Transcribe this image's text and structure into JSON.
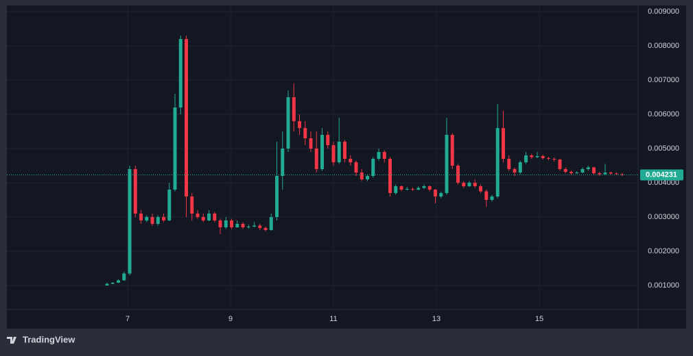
{
  "chart_data": {
    "type": "candlestick",
    "watermark": "TradingView",
    "up_color": "#22ab94",
    "down_color": "#f23645",
    "grid": true,
    "xlim": [
      4.653,
      16.92
    ],
    "xticks": [
      7,
      9,
      11,
      13,
      15
    ],
    "ylim": [
      0.0003,
      0.00914
    ],
    "yticks": [
      {
        "value": 0.001,
        "label": "0.001000"
      },
      {
        "value": 0.002,
        "label": "0.002000"
      },
      {
        "value": 0.003,
        "label": "0.003000"
      },
      {
        "value": 0.004,
        "label": "0.004000"
      },
      {
        "value": 0.005,
        "label": "0.005000"
      },
      {
        "value": 0.006,
        "label": "0.006000"
      },
      {
        "value": 0.007,
        "label": "0.007000"
      },
      {
        "value": 0.008,
        "label": "0.008000"
      },
      {
        "value": 0.009,
        "label": "0.009000"
      }
    ],
    "last_price": {
      "value": 0.004231,
      "label": "0.004231"
    },
    "x": [
      6.6,
      6.71,
      6.82,
      6.93,
      7.04,
      7.15,
      7.26,
      7.37,
      7.48,
      7.59,
      7.7,
      7.81,
      7.92,
      8.03,
      8.14,
      8.25,
      8.36,
      8.47,
      8.58,
      8.69,
      8.8,
      8.91,
      9.02,
      9.13,
      9.24,
      9.35,
      9.46,
      9.57,
      9.68,
      9.79,
      9.9,
      10.01,
      10.12,
      10.23,
      10.34,
      10.45,
      10.56,
      10.67,
      10.78,
      10.89,
      11.0,
      11.11,
      11.22,
      11.33,
      11.44,
      11.55,
      11.66,
      11.77,
      11.88,
      11.99,
      12.1,
      12.21,
      12.32,
      12.43,
      12.54,
      12.65,
      12.76,
      12.87,
      12.98,
      13.09,
      13.2,
      13.31,
      13.42,
      13.53,
      13.64,
      13.75,
      13.86,
      13.97,
      14.08,
      14.19,
      14.3,
      14.41,
      14.52,
      14.63,
      14.74,
      14.85,
      14.96,
      15.07,
      15.18,
      15.29,
      15.4,
      15.51,
      15.62,
      15.73,
      15.84,
      15.95,
      16.06,
      16.17,
      16.28,
      16.39,
      16.5,
      16.61
    ],
    "open": [
      0.001,
      0.00105,
      0.00108,
      0.00115,
      0.00135,
      0.0044,
      0.0031,
      0.0029,
      0.003,
      0.0028,
      0.003,
      0.0029,
      0.0038,
      0.0062,
      0.0082,
      0.0036,
      0.0031,
      0.003,
      0.0029,
      0.0031,
      0.0029,
      0.0027,
      0.0029,
      0.0027,
      0.0028,
      0.0027,
      0.00272,
      0.00275,
      0.00268,
      0.00262,
      0.003,
      0.0042,
      0.005,
      0.0065,
      0.0058,
      0.0056,
      0.0053,
      0.005,
      0.0044,
      0.0054,
      0.0051,
      0.0046,
      0.0052,
      0.0047,
      0.0046,
      0.0043,
      0.0041,
      0.0042,
      0.0047,
      0.0049,
      0.0047,
      0.0037,
      0.0039,
      0.0038,
      0.00382,
      0.0038,
      0.00385,
      0.0039,
      0.0038,
      0.0036,
      0.0037,
      0.0054,
      0.0045,
      0.004,
      0.0039,
      0.004,
      0.0039,
      0.00375,
      0.0035,
      0.0036,
      0.0056,
      0.0047,
      0.0044,
      0.0043,
      0.0046,
      0.0048,
      0.00475,
      0.00478,
      0.00472,
      0.0047,
      0.00468,
      0.0044,
      0.00432,
      0.00428,
      0.0043,
      0.0044,
      0.00445,
      0.00428,
      0.00425,
      0.0043,
      0.00427,
      0.00425
    ],
    "high": [
      0.00108,
      0.0011,
      0.00118,
      0.0014,
      0.0045,
      0.0045,
      0.0032,
      0.00305,
      0.0031,
      0.00305,
      0.0031,
      0.004,
      0.0066,
      0.0083,
      0.0083,
      0.0037,
      0.0032,
      0.0031,
      0.0032,
      0.00315,
      0.00295,
      0.003,
      0.00295,
      0.0029,
      0.00285,
      0.00278,
      0.00285,
      0.0028,
      0.00272,
      0.0031,
      0.0052,
      0.0055,
      0.0067,
      0.0069,
      0.006,
      0.0058,
      0.0055,
      0.0055,
      0.0056,
      0.0055,
      0.0052,
      0.0059,
      0.00525,
      0.0048,
      0.00465,
      0.0044,
      0.00425,
      0.00475,
      0.005,
      0.00495,
      0.00475,
      0.00395,
      0.00392,
      0.00388,
      0.00386,
      0.0039,
      0.00395,
      0.00392,
      0.00382,
      0.00375,
      0.0059,
      0.00545,
      0.00455,
      0.00405,
      0.00405,
      0.0041,
      0.00395,
      0.0038,
      0.00365,
      0.0063,
      0.0061,
      0.0048,
      0.00445,
      0.00465,
      0.0049,
      0.00485,
      0.0049,
      0.00482,
      0.00476,
      0.00474,
      0.0047,
      0.00445,
      0.00436,
      0.00434,
      0.00445,
      0.0045,
      0.00447,
      0.00432,
      0.00455,
      0.00433,
      0.0043,
      0.00428
    ],
    "low": [
      0.001,
      0.00104,
      0.00107,
      0.00114,
      0.0013,
      0.003,
      0.0028,
      0.00285,
      0.00275,
      0.00275,
      0.00285,
      0.00288,
      0.00375,
      0.006,
      0.003,
      0.0029,
      0.00295,
      0.00285,
      0.00288,
      0.00285,
      0.0025,
      0.00265,
      0.00265,
      0.00268,
      0.00265,
      0.00266,
      0.0027,
      0.00262,
      0.00258,
      0.0026,
      0.0029,
      0.0038,
      0.0049,
      0.0055,
      0.0054,
      0.0051,
      0.0049,
      0.0043,
      0.00435,
      0.005,
      0.0045,
      0.00455,
      0.0046,
      0.0045,
      0.0042,
      0.00405,
      0.00405,
      0.00415,
      0.00465,
      0.0046,
      0.0036,
      0.00365,
      0.00375,
      0.00378,
      0.00376,
      0.00378,
      0.00382,
      0.00375,
      0.0034,
      0.00355,
      0.00365,
      0.0044,
      0.00395,
      0.00385,
      0.00388,
      0.00385,
      0.0037,
      0.0033,
      0.00345,
      0.00355,
      0.0046,
      0.00435,
      0.0042,
      0.00425,
      0.00455,
      0.0047,
      0.00472,
      0.00468,
      0.00466,
      0.00462,
      0.00435,
      0.00428,
      0.00424,
      0.00426,
      0.00428,
      0.00436,
      0.00424,
      0.0042,
      0.00423,
      0.00424,
      0.00421,
      0.0042
    ],
    "close": [
      0.00105,
      0.00108,
      0.00115,
      0.00135,
      0.0044,
      0.0031,
      0.0029,
      0.003,
      0.0028,
      0.003,
      0.0029,
      0.0038,
      0.0062,
      0.0082,
      0.0036,
      0.0031,
      0.003,
      0.0029,
      0.0031,
      0.0029,
      0.0027,
      0.0029,
      0.0027,
      0.0028,
      0.0027,
      0.00272,
      0.00275,
      0.00268,
      0.00262,
      0.003,
      0.0042,
      0.005,
      0.0065,
      0.0058,
      0.0056,
      0.0053,
      0.005,
      0.0044,
      0.0054,
      0.0051,
      0.0046,
      0.0052,
      0.0047,
      0.0046,
      0.0043,
      0.0041,
      0.0042,
      0.0047,
      0.0049,
      0.0047,
      0.0037,
      0.0039,
      0.0038,
      0.00382,
      0.0038,
      0.00385,
      0.0039,
      0.0038,
      0.0036,
      0.0037,
      0.0054,
      0.0045,
      0.004,
      0.0039,
      0.004,
      0.0039,
      0.00375,
      0.0035,
      0.0036,
      0.0056,
      0.0047,
      0.0044,
      0.0043,
      0.0046,
      0.0048,
      0.00475,
      0.00478,
      0.00472,
      0.0047,
      0.00468,
      0.0044,
      0.00432,
      0.00428,
      0.0043,
      0.0044,
      0.00445,
      0.00428,
      0.00425,
      0.0043,
      0.00427,
      0.00425,
      0.00423
    ]
  }
}
